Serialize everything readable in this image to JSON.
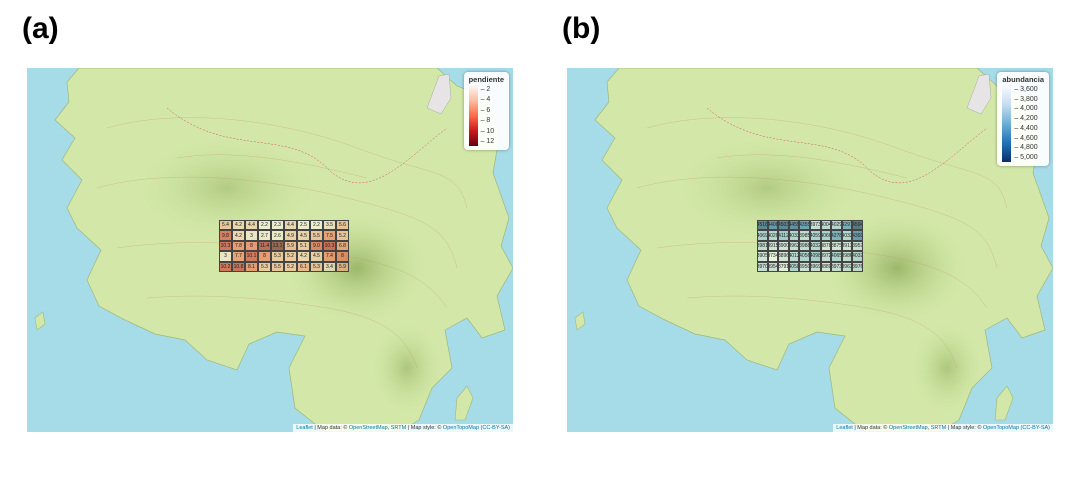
{
  "panels": [
    {
      "letter": "(a)",
      "legend_title": "pendiente",
      "legend_ticks": [
        "2",
        "4",
        "6",
        "8",
        "10",
        "12"
      ],
      "legend_colors": [
        "#fff5f0",
        "#fcbba1",
        "#fb6a4a",
        "#cb181d",
        "#67000d"
      ],
      "values": [
        [
          "5.4",
          "4.2",
          "4.4",
          "2.2",
          "2.3",
          "4.4",
          "2.5",
          "2.2",
          "3.5",
          "5.6"
        ],
        [
          "9.8",
          "4.2",
          "3",
          "2.7",
          "2.6",
          "4.9",
          "4.5",
          "5.5",
          "7.5",
          "5.2"
        ],
        [
          "10.3",
          "7.8",
          "8",
          "11.4",
          "13.1",
          "5.9",
          "5.1",
          "9.0",
          "10.3",
          "6.8"
        ],
        [
          "3",
          "7.7",
          "10.1",
          "8",
          "5.3",
          "5.2",
          "4.2",
          "4.5",
          "7.4",
          "8"
        ],
        [
          "10.2",
          "10.8",
          "8.1",
          "5.3",
          "5.5",
          "5.2",
          "6.1",
          "5.3",
          "3.4",
          "5.9"
        ]
      ]
    },
    {
      "letter": "(b)",
      "legend_title": "abundancia",
      "legend_ticks": [
        "3,600",
        "3,800",
        "4,000",
        "4,200",
        "4,400",
        "4,600",
        "4,800",
        "5,000"
      ],
      "legend_colors": [
        "#f7fbff",
        "#c6dbef",
        "#6baed6",
        "#2171b5",
        "#08306b"
      ],
      "values": [
        [
          "4518",
          "4406",
          "4503",
          "4455",
          "4355",
          "3973",
          "4004",
          "4029",
          "4291",
          "4594"
        ],
        [
          "4069",
          "4026",
          "4112",
          "4033",
          "3985",
          "4059",
          "4066",
          "4278",
          "4032",
          "4393"
        ],
        [
          "3981",
          "3915",
          "3900",
          "3962",
          "3988",
          "4032",
          "3878",
          "3875",
          "3913",
          "3957"
        ],
        [
          "3905",
          "3734",
          "3896",
          "4012",
          "4056",
          "4098",
          "3972",
          "4065",
          "3986",
          "4032"
        ],
        [
          "3970",
          "3954",
          "3791",
          "4058",
          "3950",
          "3969",
          "3889",
          "3973",
          "3963",
          "3976"
        ]
      ]
    }
  ],
  "attribution": {
    "leaflet": "Leaflet",
    "map_data": " | Map data: © ",
    "osm": "OpenStreetMap",
    "sep": ", ",
    "srtm": "SRTM",
    "style": " | Map style: © ",
    "otm": "OpenTopoMap",
    "cc": "(CC-BY-SA)"
  }
}
